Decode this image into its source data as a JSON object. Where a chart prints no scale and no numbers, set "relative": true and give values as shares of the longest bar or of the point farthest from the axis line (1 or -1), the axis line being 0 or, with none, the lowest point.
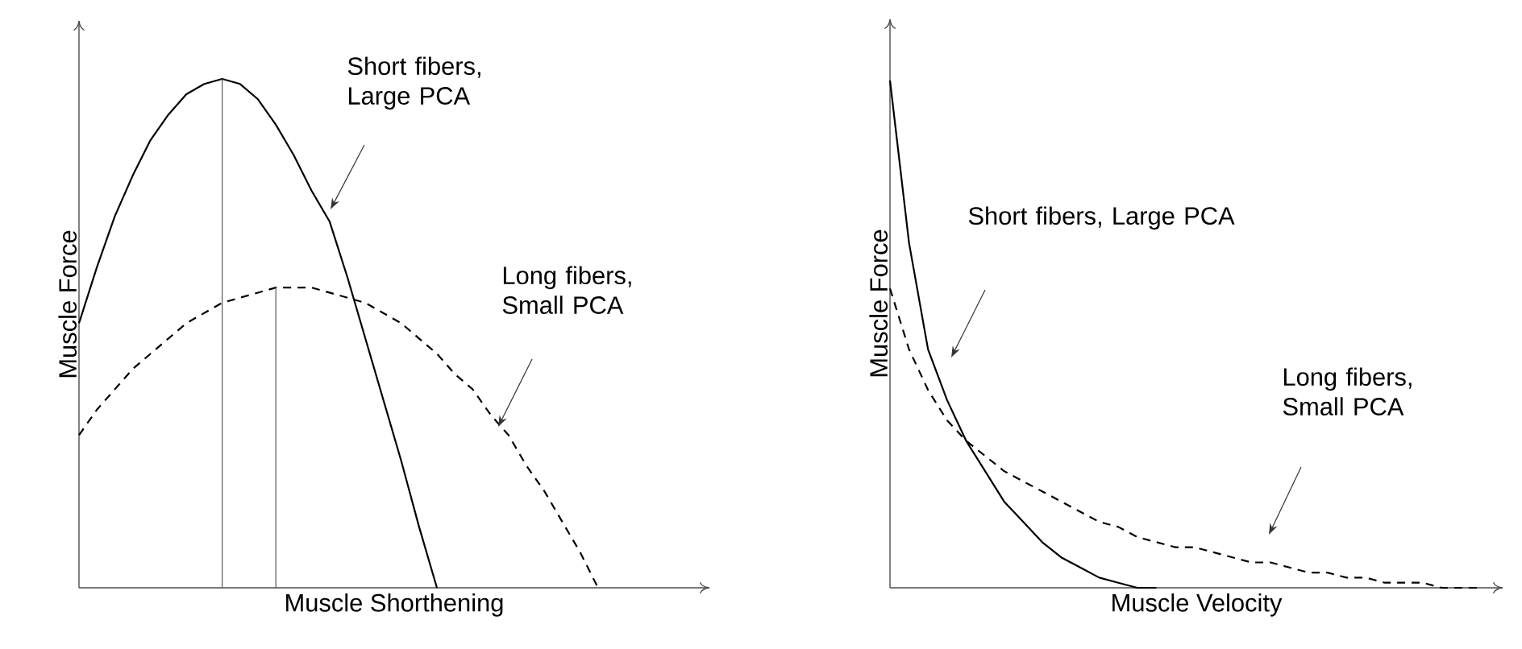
{
  "chart_data": [
    {
      "type": "line",
      "relative": true,
      "xlabel": "Muscle Shorthening",
      "ylabel": "Muscle Force",
      "categories": [
        null,
        null,
        null,
        null,
        null,
        null,
        null,
        null,
        null,
        null,
        null,
        null,
        null,
        null,
        null,
        null,
        null,
        null,
        null,
        null,
        null,
        null,
        null,
        null,
        null,
        null,
        null,
        null,
        null,
        null,
        null,
        null,
        null
      ],
      "series": [
        {
          "color": "#000000",
          "line_style": "solid",
          "values": [
            0.52,
            0.63,
            0.73,
            0.81,
            0.88,
            0.93,
            0.97,
            0.99,
            1,
            0.99,
            0.96,
            0.91,
            0.85,
            0.78,
            0.72,
            0.61,
            0.49,
            0.37,
            0.25,
            0.12,
            0,
            null,
            null,
            null,
            null,
            null,
            null,
            null,
            null,
            null,
            null,
            null,
            null
          ]
        },
        {
          "color": "#000000",
          "line_style": "dashed",
          "values": [
            0.3,
            0.35,
            0.39,
            0.43,
            0.46,
            0.49,
            0.52,
            0.54,
            0.56,
            0.57,
            0.58,
            0.59,
            0.59,
            0.59,
            0.58,
            0.57,
            0.56,
            0.54,
            0.52,
            0.49,
            0.46,
            0.42,
            0.39,
            0.34,
            0.3,
            0.24,
            0.19,
            0.13,
            0.07,
            0,
            null,
            null,
            null
          ]
        }
      ],
      "annotations": [
        "Short fibers, Large PCA",
        "Long fibers, Small PCA"
      ]
    },
    {
      "type": "line",
      "relative": true,
      "xlabel": "Muscle Velocity",
      "ylabel": "Muscle Force",
      "categories": [
        null,
        null,
        null,
        null,
        null,
        null,
        null,
        null,
        null,
        null,
        null,
        null,
        null,
        null,
        null,
        null,
        null,
        null,
        null,
        null,
        null,
        null,
        null,
        null,
        null,
        null,
        null,
        null,
        null,
        null,
        null,
        null
      ],
      "series": [
        {
          "color": "#000000",
          "line_style": "solid",
          "values": [
            1,
            0.68,
            0.47,
            0.37,
            0.29,
            0.23,
            0.17,
            0.13,
            0.09,
            0.06,
            0.04,
            0.02,
            0.01,
            0,
            0,
            null,
            null,
            null,
            null,
            null,
            null,
            null,
            null,
            null,
            null,
            null,
            null,
            null,
            null,
            null,
            null,
            null
          ]
        },
        {
          "color": "#000000",
          "line_style": "dashed",
          "values": [
            0.59,
            0.47,
            0.39,
            0.33,
            0.29,
            0.26,
            0.23,
            0.21,
            0.19,
            0.17,
            0.15,
            0.13,
            0.12,
            0.1,
            0.09,
            0.08,
            0.08,
            0.07,
            0.06,
            0.05,
            0.05,
            0.04,
            0.03,
            0.03,
            0.02,
            0.02,
            0.01,
            0.01,
            0.01,
            0,
            0,
            0
          ]
        }
      ],
      "annotations": [
        "Short fibers, Large PCA",
        "Long fibers, Small PCA"
      ]
    }
  ]
}
